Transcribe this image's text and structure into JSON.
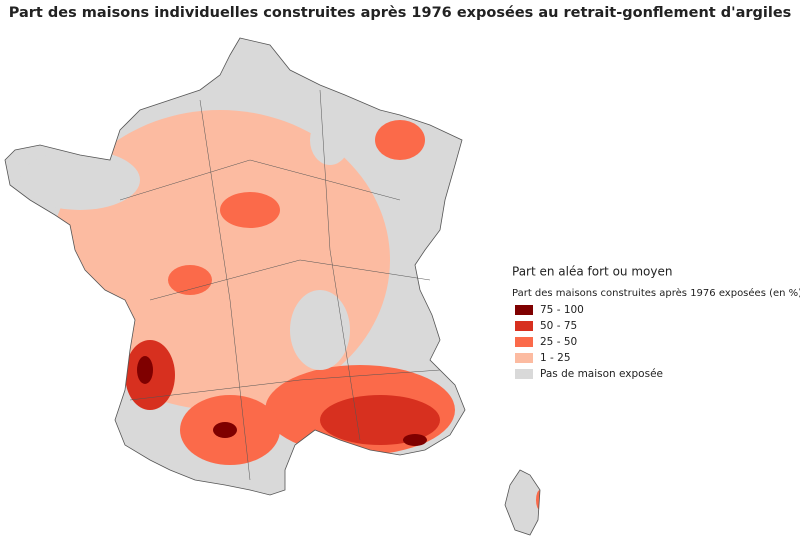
{
  "title": "Part des maisons individuelles construites après 1976 exposées au retrait-gonflement d'argiles",
  "legend": {
    "title": "Part en aléa fort ou moyen",
    "subtitle": "Part des maisons construites après 1976 exposées (en %)",
    "items": [
      {
        "label": "75 - 100",
        "color": "#7f0000"
      },
      {
        "label": "50 - 75",
        "color": "#d7301f"
      },
      {
        "label": "25 - 50",
        "color": "#fb6a4a"
      },
      {
        "label": "1 - 25",
        "color": "#fcbba1"
      },
      {
        "label": "Pas de maison exposée",
        "color": "#d9d9d9"
      }
    ]
  }
}
